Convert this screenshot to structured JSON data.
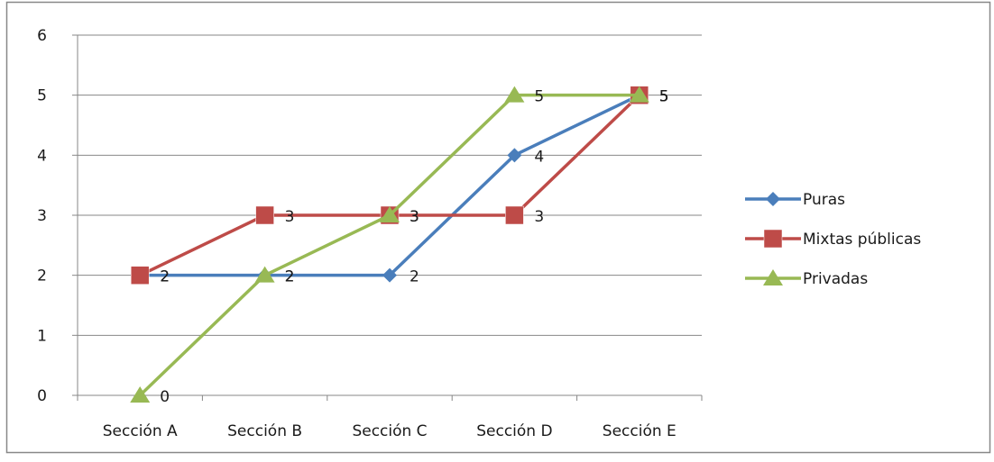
{
  "chart_data": {
    "type": "line",
    "categories": [
      "Sección A",
      "Sección B",
      "Sección C",
      "Sección D",
      "Sección E"
    ],
    "ylim": [
      0,
      6
    ],
    "yticks": [
      0,
      1,
      2,
      3,
      4,
      5,
      6
    ],
    "grid": true,
    "legend_position": "right",
    "series": [
      {
        "name": "Puras",
        "values": [
          2,
          2,
          2,
          4,
          5
        ],
        "color": "#4a7ebb",
        "marker": "diamond",
        "labels": [
          "2",
          "2",
          "2",
          "4",
          "5"
        ]
      },
      {
        "name": "Mixtas públicas",
        "values": [
          2,
          3,
          3,
          3,
          5
        ],
        "color": "#be4b48",
        "marker": "square",
        "labels": [
          "2",
          "3",
          "3",
          "3",
          "5"
        ]
      },
      {
        "name": "Privadas",
        "values": [
          0,
          2,
          3,
          5,
          5
        ],
        "color": "#98b954",
        "marker": "triangle",
        "labels": [
          "0",
          "2",
          "3",
          "5",
          "5"
        ]
      }
    ]
  }
}
